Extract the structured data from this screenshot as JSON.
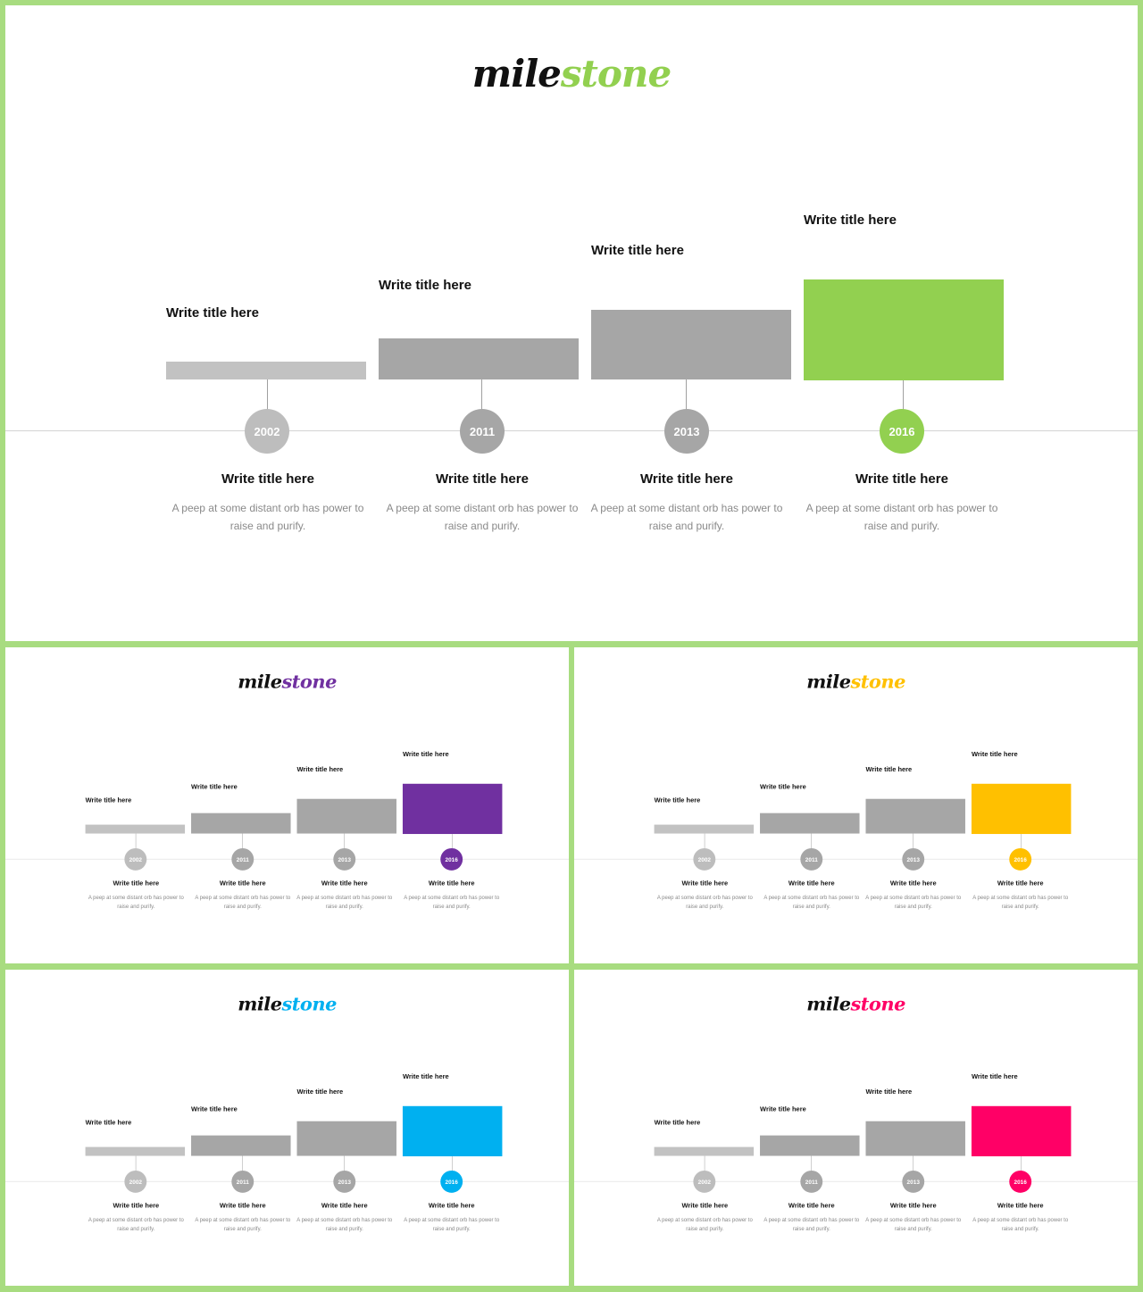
{
  "logo": {
    "part1": "mile",
    "part2": "stone"
  },
  "milestones": [
    {
      "year": "2002",
      "top_title": "Write title here",
      "title": "Write title here",
      "desc": "A peep at some distant orb has power to raise and purify."
    },
    {
      "year": "2011",
      "top_title": "Write title here",
      "title": "Write title here",
      "desc": "A peep at some distant orb has power to raise and purify."
    },
    {
      "year": "2013",
      "top_title": "Write title here",
      "title": "Write title here",
      "desc": "A peep at some distant orb has power to raise and purify."
    },
    {
      "year": "2016",
      "top_title": "Write title here",
      "title": "Write title here",
      "desc": "A peep at some distant orb has power to raise and purify."
    }
  ],
  "colors": {
    "bar_light": "#c2c2c2",
    "bar_gray": "#a6a6a6",
    "circle_light": "#bdbdbd",
    "circle_gray": "#a6a6a6"
  },
  "slides": [
    {
      "id": "main",
      "accent": "#92d050"
    },
    {
      "id": "purple",
      "accent": "#7030a0"
    },
    {
      "id": "yellow",
      "accent": "#ffc000"
    },
    {
      "id": "blue",
      "accent": "#00b0f0"
    },
    {
      "id": "pink",
      "accent": "#ff0066"
    }
  ]
}
